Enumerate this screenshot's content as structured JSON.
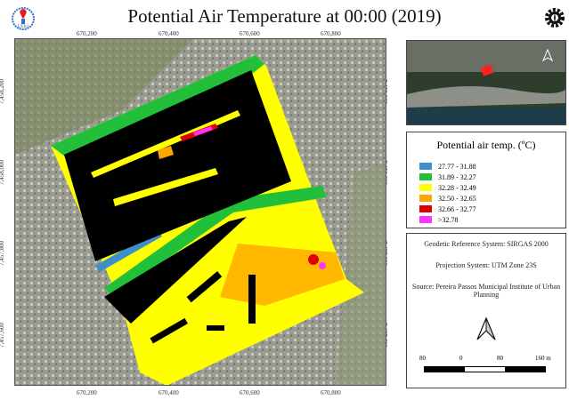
{
  "title": "Potential Air Temperature at 00:00 (2019)",
  "x_ticks": [
    "670,200",
    "670,400",
    "670,600",
    "670,800"
  ],
  "y_ticks": [
    "7,458,200",
    "7,458,000",
    "7,457,800",
    "7,457,600"
  ],
  "legend": {
    "title": "Potential air temp. (ºC)",
    "items": [
      {
        "label": "27.77 - 31.88",
        "color": "#3d8fc9"
      },
      {
        "label": "31.89 - 32.27",
        "color": "#22c03a"
      },
      {
        "label": "32.28 - 32.49",
        "color": "#ffff00"
      },
      {
        "label": "32.50 - 32.65",
        "color": "#ffa500"
      },
      {
        "label": "32.66 - 32.77",
        "color": "#e00000"
      },
      {
        "label": ">32.78",
        "color": "#ff33ff"
      }
    ]
  },
  "info": {
    "datum": "Geodetic Reference System: SIRGAS 2000",
    "projection": "Projection System: UTM Zone 23S",
    "source": "Source: Pereira Passos Municipal Institute of Urban Planning"
  },
  "scale": {
    "labels": [
      "80",
      "0",
      "80",
      "160 m"
    ]
  },
  "logos": {
    "left": "UERJ"
  }
}
